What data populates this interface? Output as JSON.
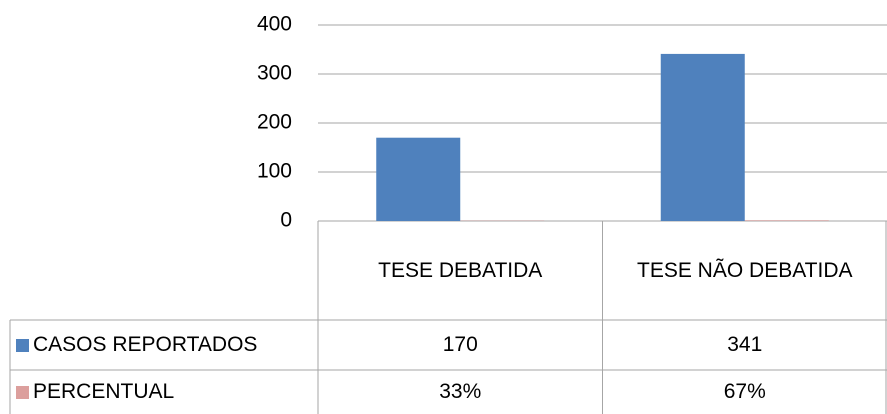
{
  "chart_data": {
    "type": "bar",
    "categories": [
      "TESE DEBATIDA",
      "TESE NÃO DEBATIDA"
    ],
    "series": [
      {
        "name": "CASOS REPORTADOS",
        "color": "#4f81bd",
        "values": [
          170,
          341
        ]
      },
      {
        "name": "PERCENTUAL",
        "color": "#c0504d",
        "values": [
          0.33,
          0.67
        ],
        "value_labels": [
          "33%",
          "67%"
        ]
      }
    ],
    "ylim": [
      0,
      400
    ],
    "yticks": [
      0,
      100,
      200,
      300,
      400
    ],
    "grid": true,
    "data_table": true
  }
}
